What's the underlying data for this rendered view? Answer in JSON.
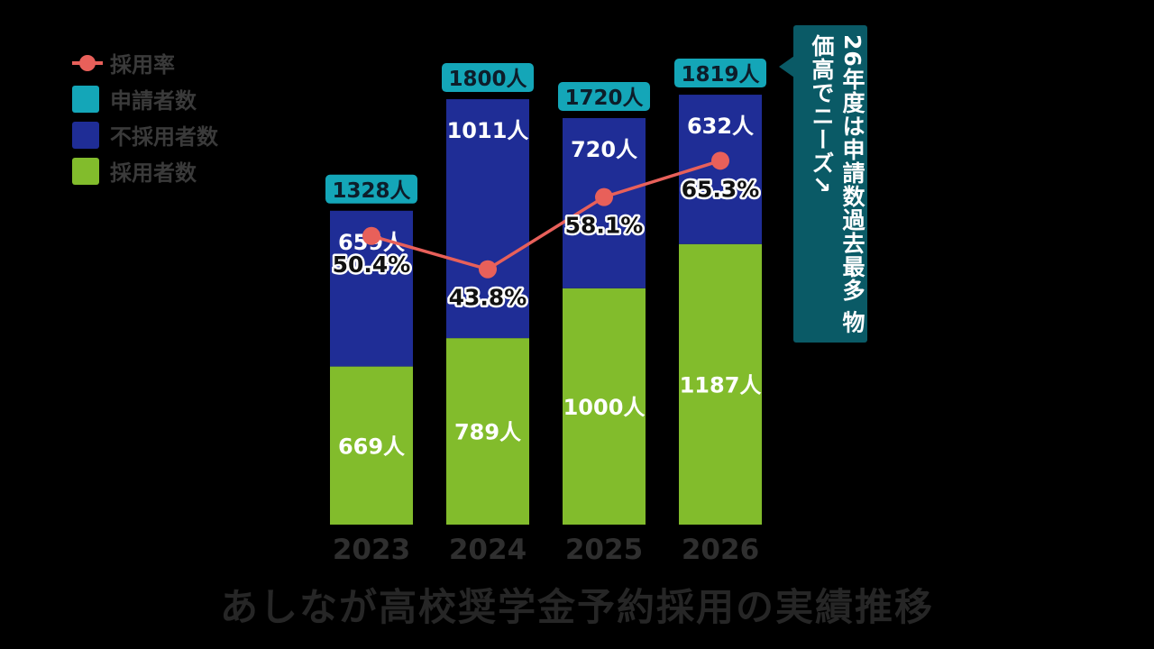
{
  "title": "あしなが高校奨学金予約採用の実績推移",
  "callout": "26年度は申請数過去最多 物価高でニーズ↗",
  "colors": {
    "background": "#000000",
    "applicants": "#14a6b8",
    "rejected": "#1f2d96",
    "adopted": "#82bc2c",
    "rate": "#e8605a",
    "callout": "#0a5a66",
    "axis_text": "#2f2f2f",
    "title_text": "#262626"
  },
  "chart_data": {
    "type": "bar",
    "stacked": true,
    "categories": [
      "2023",
      "2024",
      "2025",
      "2026"
    ],
    "legend": [
      {
        "name": "採用率",
        "marker": "line-dot",
        "color": "#e8605a"
      },
      {
        "name": "申請者数",
        "marker": "swatch",
        "color": "#14a6b8"
      },
      {
        "name": "不採用者数",
        "marker": "swatch",
        "color": "#1f2d96"
      },
      {
        "name": "採用者数",
        "marker": "swatch",
        "color": "#82bc2c"
      }
    ],
    "series": [
      {
        "name": "採用者数",
        "values": [
          669,
          789,
          1000,
          1187
        ],
        "labels": [
          "669人",
          "789人",
          "1000人",
          "1187人"
        ]
      },
      {
        "name": "不採用者数",
        "values": [
          659,
          1011,
          720,
          632
        ],
        "labels": [
          "659人",
          "1011人",
          "720人",
          "632人"
        ]
      }
    ],
    "totals": {
      "name": "申請者数",
      "values": [
        1328,
        1800,
        1720,
        1819
      ],
      "labels": [
        "1328人",
        "1800人",
        "1720人",
        "1819人"
      ]
    },
    "rate": {
      "name": "採用率",
      "values": [
        50.4,
        43.8,
        58.1,
        65.3
      ],
      "labels": [
        "50.4%",
        "43.8%",
        "58.1%",
        "65.3%"
      ]
    },
    "legend_position": "top-left",
    "grid": false
  }
}
